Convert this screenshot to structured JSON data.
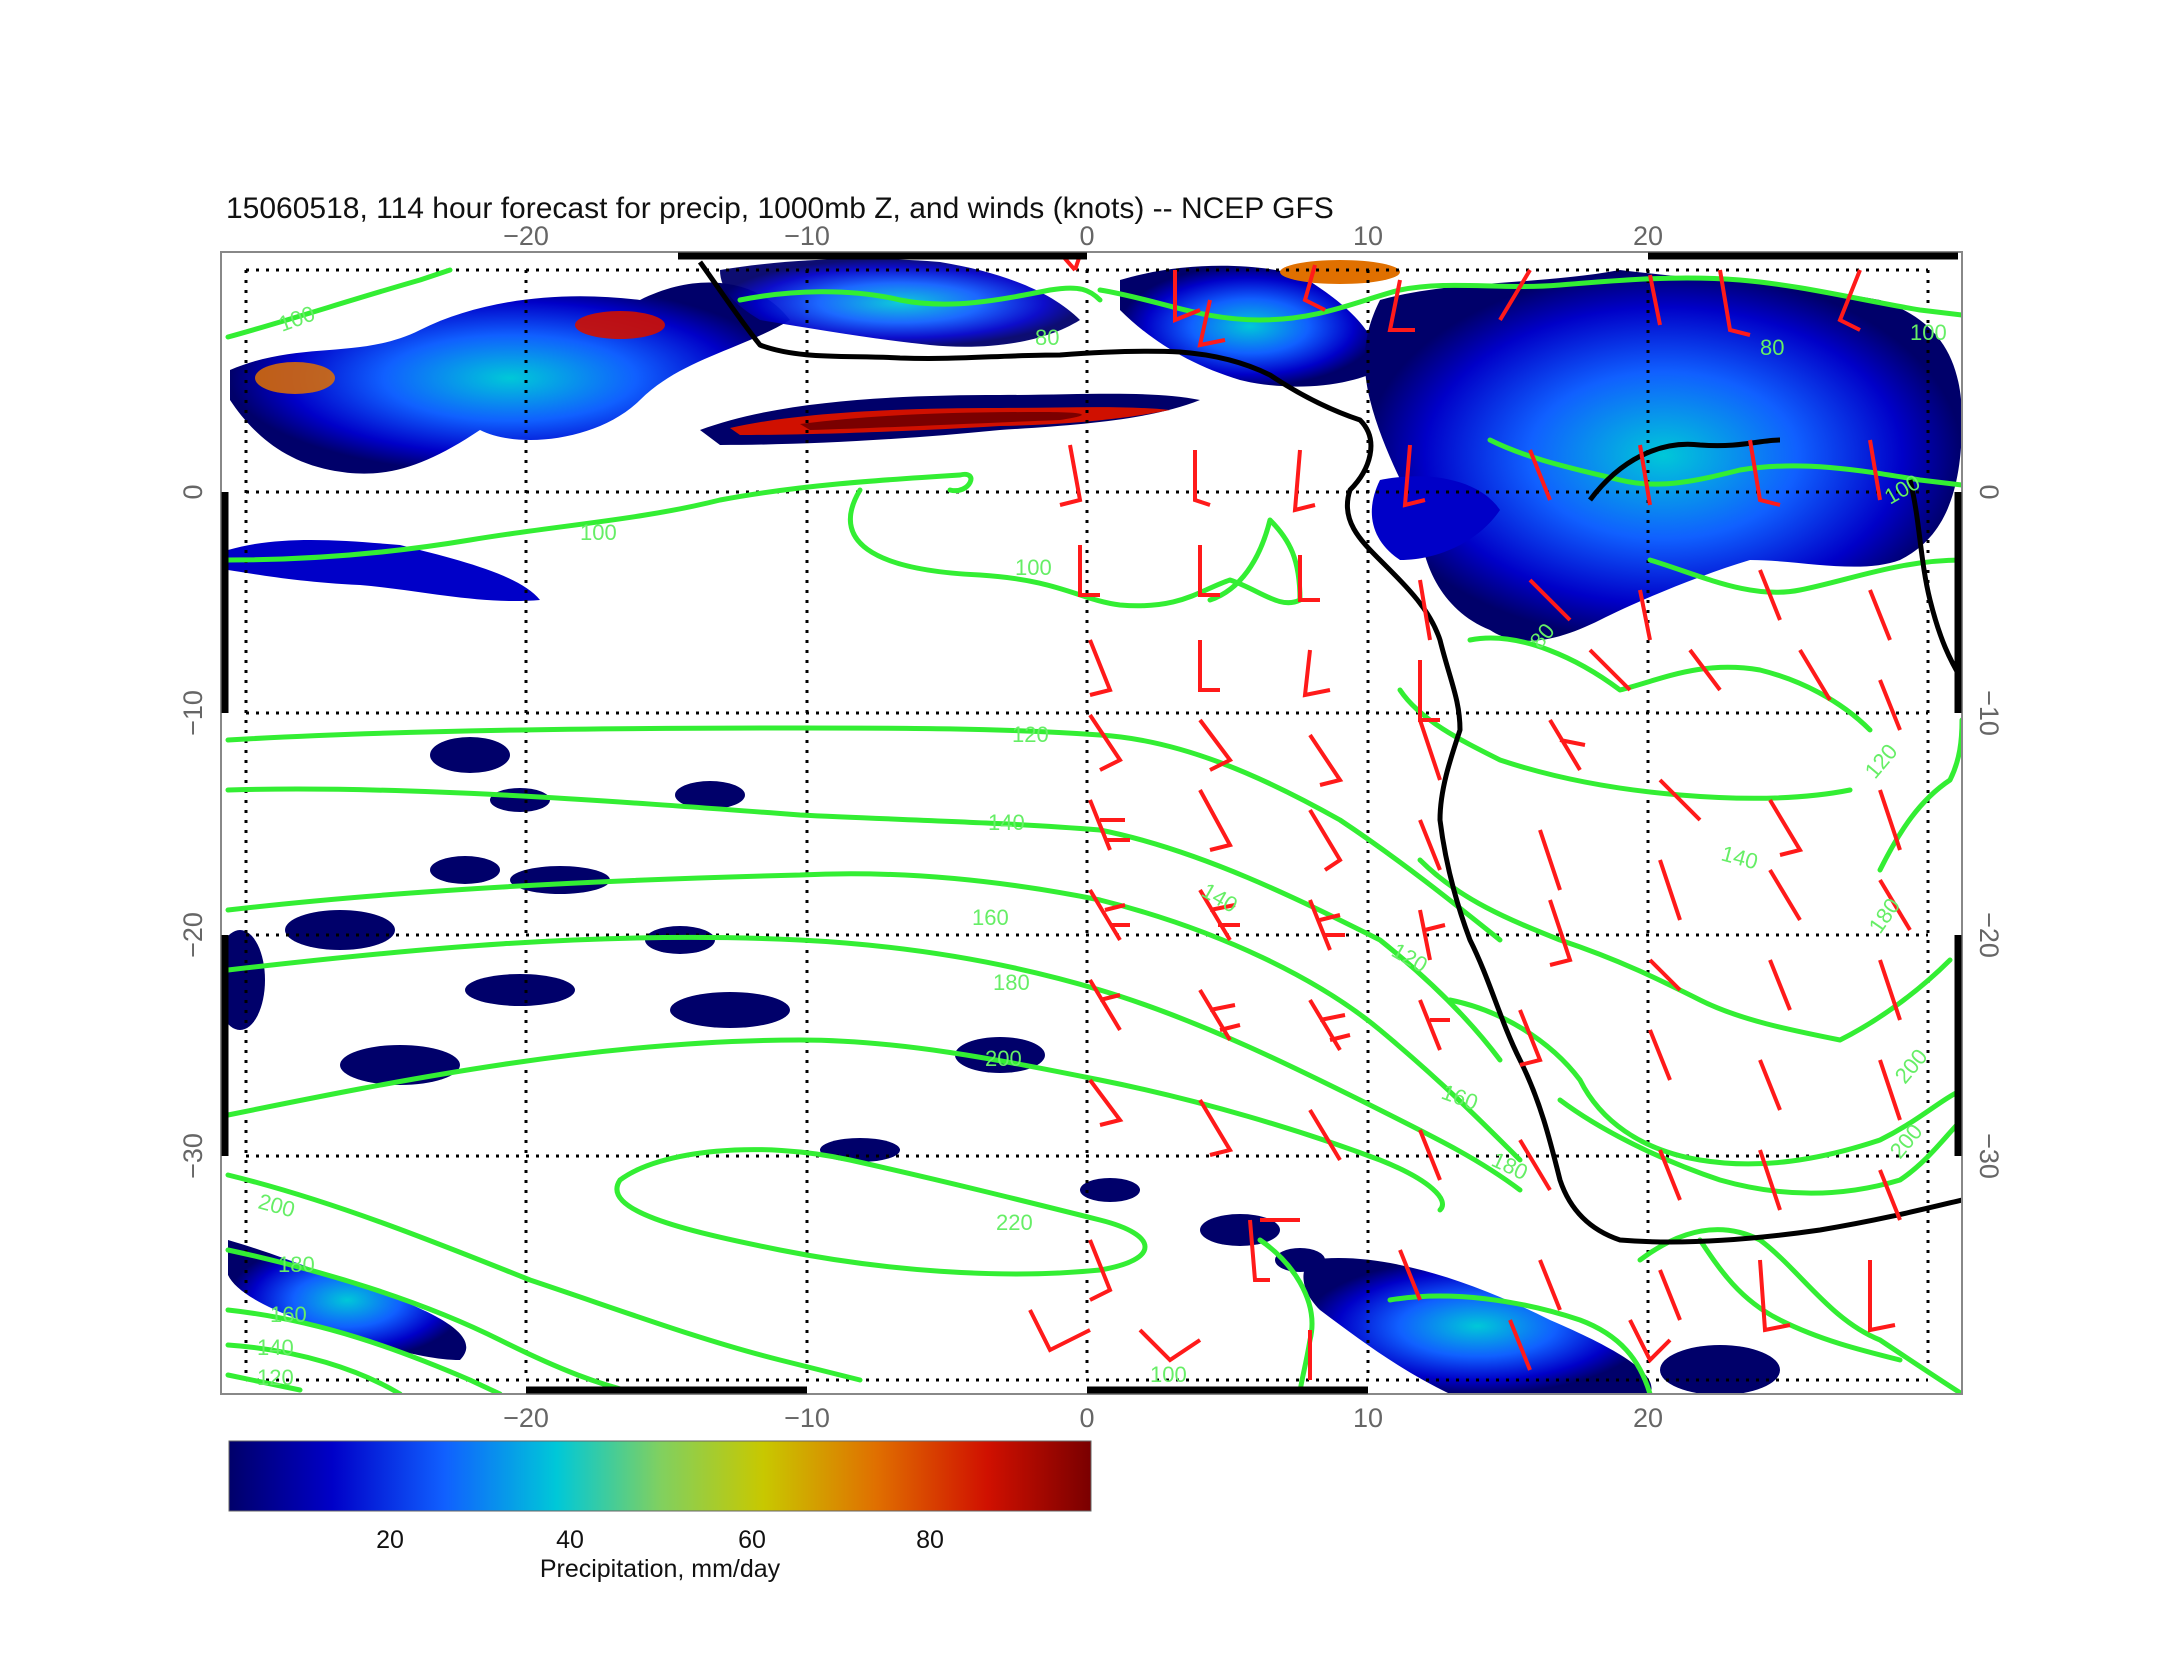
{
  "title": "15060518, 114 hour forecast for precip, 1000mb Z, and winds (knots) -- NCEP GFS",
  "map": {
    "lon_range": [
      -30,
      31
    ],
    "lat_range": [
      -40,
      11
    ],
    "lon_ticks": [
      "−20",
      "−10",
      "0",
      "10",
      "20"
    ],
    "lat_ticks": [
      "0",
      "−10",
      "−20",
      "−30"
    ],
    "grid": true,
    "contour_color": "#33ee33",
    "wind_barb_color": "#ff1a1a",
    "coastline_color": "#000000"
  },
  "colorbar": {
    "ticks": [
      "20",
      "40",
      "60",
      "80"
    ],
    "label": "Precipitation, mm/day",
    "colors": [
      "#00006a",
      "#0000c8",
      "#1060ff",
      "#00c8d8",
      "#80d060",
      "#c8c800",
      "#e07000",
      "#d01000",
      "#7a0000"
    ]
  },
  "contour_labels": [
    "100",
    "100",
    "100",
    "80",
    "120",
    "140",
    "160",
    "180",
    "200",
    "220",
    "200",
    "180",
    "160",
    "140",
    "120",
    "140",
    "120",
    "160",
    "180",
    "80",
    "80",
    "100",
    "100",
    "140",
    "120",
    "180",
    "200",
    "200",
    "100"
  ]
}
